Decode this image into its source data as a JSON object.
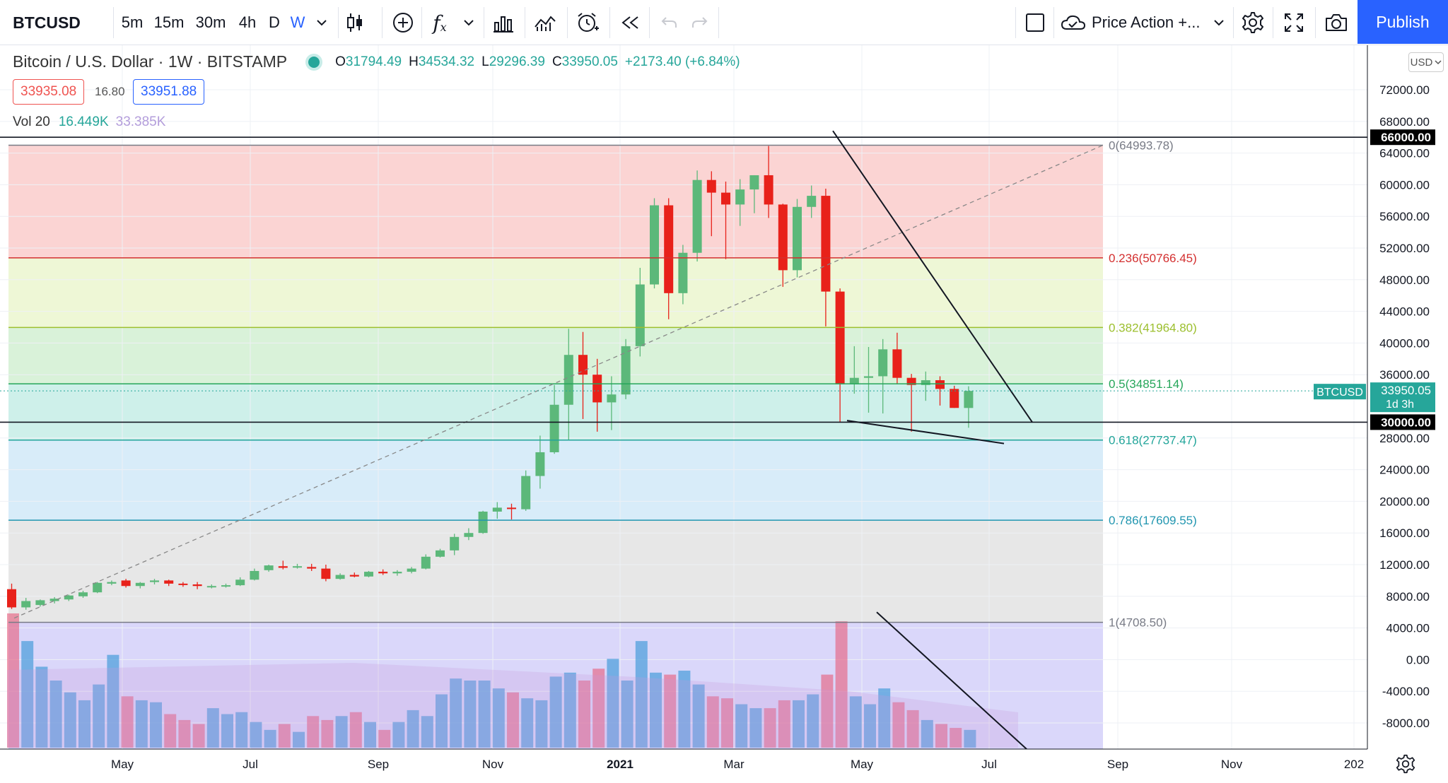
{
  "toolbar": {
    "symbol": "BTCUSD",
    "intervals": [
      "5m",
      "15m",
      "30m",
      "4h",
      "D",
      "W"
    ],
    "active_interval": "W",
    "fx_label": "f",
    "template_label": "Price Action +...",
    "publish_label": "Publish"
  },
  "legend": {
    "title": "Bitcoin / U.S. Dollar · 1W · BITSTAMP",
    "o_label": "O",
    "o": "31794.49",
    "h_label": "H",
    "h": "34534.32",
    "l_label": "L",
    "l": "29296.39",
    "c_label": "C",
    "c": "33950.05",
    "change": "+2173.40 (+6.84%)",
    "sell_price": "33935.08",
    "spread": "16.80",
    "buy_price": "33951.88",
    "vol_label": "Vol 20",
    "vol_value": "16.449K",
    "vol_ma": "33.385K"
  },
  "currency_button": "USD",
  "colors": {
    "up": "#26a69a",
    "down": "#ef5350",
    "accent": "#2962ff",
    "candle_up": "#5cb87a",
    "candle_down": "#e8211a"
  },
  "chart_data": {
    "type": "candlestick",
    "title": "Bitcoin / U.S. Dollar · 1W · BITSTAMP",
    "price_axis_labels": [
      "72000.00",
      "68000.00",
      "64000.00",
      "60000.00",
      "56000.00",
      "52000.00",
      "48000.00",
      "44000.00",
      "40000.00",
      "36000.00",
      "28000.00",
      "24000.00",
      "20000.00",
      "16000.00",
      "12000.00",
      "8000.00",
      "4000.00",
      "0.00",
      "-4000.00",
      "-8000.00"
    ],
    "y_range": [
      -11500,
      74000
    ],
    "time_axis_labels": [
      "May",
      "Jul",
      "Sep",
      "Nov",
      "2021",
      "Mar",
      "May",
      "Jul",
      "Sep",
      "Nov",
      "202"
    ],
    "horizontal_lines": [
      {
        "price": 66000,
        "label": "66000.00"
      },
      {
        "price": 30000,
        "label": "30000.00"
      }
    ],
    "last_price": {
      "symbol": "BTCUSD",
      "price": "33950.05",
      "countdown": "1d 3h"
    },
    "fibonacci": [
      {
        "level": 0,
        "price": 64993.78,
        "label": "0(64993.78)",
        "color": "#787b86"
      },
      {
        "level": 0.236,
        "price": 50766.45,
        "label": "0.236(50766.45)",
        "color": "#d32f2f"
      },
      {
        "level": 0.382,
        "price": 41964.8,
        "label": "0.382(41964.80)",
        "color": "#9cbf2e"
      },
      {
        "level": 0.5,
        "price": 34851.14,
        "label": "0.5(34851.14)",
        "color": "#26a65a"
      },
      {
        "level": 0.618,
        "price": 27737.47,
        "label": "0.618(27737.47)",
        "color": "#22a59a"
      },
      {
        "level": 0.786,
        "price": 17609.55,
        "label": "0.786(17609.55)",
        "color": "#2196b0"
      },
      {
        "level": 1,
        "price": 4708.5,
        "label": "1(4708.50)",
        "color": "#787b86"
      }
    ],
    "candles": [
      {
        "o": 8900,
        "h": 9600,
        "l": 6400,
        "c": 6600
      },
      {
        "o": 6600,
        "h": 7800,
        "l": 6300,
        "c": 7400
      },
      {
        "o": 6900,
        "h": 7600,
        "l": 6700,
        "c": 7500
      },
      {
        "o": 7400,
        "h": 7900,
        "l": 7100,
        "c": 7700
      },
      {
        "o": 7600,
        "h": 8200,
        "l": 7400,
        "c": 8100
      },
      {
        "o": 8000,
        "h": 8700,
        "l": 7800,
        "c": 8500
      },
      {
        "o": 8500,
        "h": 9800,
        "l": 8400,
        "c": 9700
      },
      {
        "o": 9600,
        "h": 10000,
        "l": 9400,
        "c": 9800
      },
      {
        "o": 10000,
        "h": 10200,
        "l": 9100,
        "c": 9300
      },
      {
        "o": 9300,
        "h": 9800,
        "l": 9000,
        "c": 9700
      },
      {
        "o": 9800,
        "h": 10200,
        "l": 9500,
        "c": 10000
      },
      {
        "o": 10000,
        "h": 10100,
        "l": 9300,
        "c": 9600
      },
      {
        "o": 9600,
        "h": 9800,
        "l": 9200,
        "c": 9500
      },
      {
        "o": 9500,
        "h": 9800,
        "l": 8900,
        "c": 9300
      },
      {
        "o": 9200,
        "h": 9500,
        "l": 9000,
        "c": 9300
      },
      {
        "o": 9300,
        "h": 9600,
        "l": 9100,
        "c": 9400
      },
      {
        "o": 9400,
        "h": 10400,
        "l": 9300,
        "c": 10100
      },
      {
        "o": 10100,
        "h": 11500,
        "l": 10000,
        "c": 11200
      },
      {
        "o": 11300,
        "h": 12000,
        "l": 11100,
        "c": 11900
      },
      {
        "o": 11800,
        "h": 12500,
        "l": 11400,
        "c": 11600
      },
      {
        "o": 11700,
        "h": 12100,
        "l": 11500,
        "c": 11800
      },
      {
        "o": 11700,
        "h": 12100,
        "l": 11200,
        "c": 11500
      },
      {
        "o": 11500,
        "h": 12000,
        "l": 9900,
        "c": 10200
      },
      {
        "o": 10200,
        "h": 10900,
        "l": 10100,
        "c": 10700
      },
      {
        "o": 10700,
        "h": 11000,
        "l": 10400,
        "c": 10500
      },
      {
        "o": 10500,
        "h": 11200,
        "l": 10400,
        "c": 11100
      },
      {
        "o": 11100,
        "h": 11400,
        "l": 10700,
        "c": 10900
      },
      {
        "o": 10900,
        "h": 11300,
        "l": 10600,
        "c": 11100
      },
      {
        "o": 11100,
        "h": 11700,
        "l": 10900,
        "c": 11500
      },
      {
        "o": 11500,
        "h": 13300,
        "l": 11400,
        "c": 13000
      },
      {
        "o": 13000,
        "h": 14000,
        "l": 12900,
        "c": 13800
      },
      {
        "o": 13800,
        "h": 15900,
        "l": 13200,
        "c": 15500
      },
      {
        "o": 15500,
        "h": 16600,
        "l": 15100,
        "c": 16000
      },
      {
        "o": 16000,
        "h": 18800,
        "l": 15900,
        "c": 18700
      },
      {
        "o": 18700,
        "h": 19900,
        "l": 17800,
        "c": 19200
      },
      {
        "o": 19200,
        "h": 19700,
        "l": 17700,
        "c": 19100
      },
      {
        "o": 19000,
        "h": 23900,
        "l": 18800,
        "c": 23200
      },
      {
        "o": 23200,
        "h": 28300,
        "l": 21600,
        "c": 26200
      },
      {
        "o": 26200,
        "h": 34700,
        "l": 26000,
        "c": 32200
      },
      {
        "o": 32200,
        "h": 41800,
        "l": 27700,
        "c": 38500
      },
      {
        "o": 38500,
        "h": 41400,
        "l": 30400,
        "c": 36000
      },
      {
        "o": 36000,
        "h": 38000,
        "l": 28800,
        "c": 32500
      },
      {
        "o": 32500,
        "h": 35800,
        "l": 29000,
        "c": 33500
      },
      {
        "o": 33500,
        "h": 40500,
        "l": 32900,
        "c": 39600
      },
      {
        "o": 39600,
        "h": 49500,
        "l": 38300,
        "c": 47400
      },
      {
        "o": 47400,
        "h": 58300,
        "l": 46900,
        "c": 57400
      },
      {
        "o": 57400,
        "h": 58300,
        "l": 43000,
        "c": 46300
      },
      {
        "o": 46300,
        "h": 52400,
        "l": 44900,
        "c": 51400
      },
      {
        "o": 51400,
        "h": 61800,
        "l": 50300,
        "c": 60600
      },
      {
        "o": 60600,
        "h": 61700,
        "l": 53500,
        "c": 59000
      },
      {
        "o": 59000,
        "h": 60400,
        "l": 50600,
        "c": 57500
      },
      {
        "o": 57500,
        "h": 60700,
        "l": 54800,
        "c": 59400
      },
      {
        "o": 59400,
        "h": 61200,
        "l": 56400,
        "c": 61200
      },
      {
        "o": 61200,
        "h": 64900,
        "l": 55800,
        "c": 57500
      },
      {
        "o": 57500,
        "h": 57600,
        "l": 47100,
        "c": 49200
      },
      {
        "o": 49200,
        "h": 58200,
        "l": 48300,
        "c": 57200
      },
      {
        "o": 57200,
        "h": 59900,
        "l": 55800,
        "c": 58600
      },
      {
        "o": 58600,
        "h": 59500,
        "l": 42100,
        "c": 46500
      },
      {
        "o": 46500,
        "h": 46900,
        "l": 30000,
        "c": 34800
      },
      {
        "o": 34800,
        "h": 39600,
        "l": 33600,
        "c": 35600
      },
      {
        "o": 35600,
        "h": 39500,
        "l": 31200,
        "c": 35800
      },
      {
        "o": 35800,
        "h": 40500,
        "l": 31100,
        "c": 39200
      },
      {
        "o": 39200,
        "h": 41300,
        "l": 34800,
        "c": 35600
      },
      {
        "o": 35600,
        "h": 36100,
        "l": 28800,
        "c": 34700
      },
      {
        "o": 34700,
        "h": 36400,
        "l": 32700,
        "c": 35300
      },
      {
        "o": 35300,
        "h": 35800,
        "l": 32100,
        "c": 34200
      },
      {
        "o": 34200,
        "h": 34600,
        "l": 31800,
        "c": 31800
      },
      {
        "o": 31794.49,
        "h": 34534.32,
        "l": 29296.39,
        "c": 33950.05
      }
    ],
    "volume_relative": [
      0.68,
      0.54,
      0.41,
      0.34,
      0.28,
      0.24,
      0.32,
      0.47,
      0.26,
      0.24,
      0.23,
      0.17,
      0.14,
      0.12,
      0.2,
      0.17,
      0.18,
      0.13,
      0.09,
      0.12,
      0.08,
      0.16,
      0.14,
      0.16,
      0.18,
      0.13,
      0.09,
      0.13,
      0.19,
      0.16,
      0.27,
      0.35,
      0.34,
      0.34,
      0.3,
      0.28,
      0.25,
      0.24,
      0.36,
      0.38,
      0.34,
      0.4,
      0.45,
      0.34,
      0.54,
      0.38,
      0.37,
      0.39,
      0.32,
      0.26,
      0.25,
      0.22,
      0.2,
      0.2,
      0.24,
      0.24,
      0.27,
      0.37,
      0.64,
      0.26,
      0.22,
      0.3,
      0.23,
      0.19,
      0.14,
      0.12,
      0.1,
      0.09
    ]
  }
}
